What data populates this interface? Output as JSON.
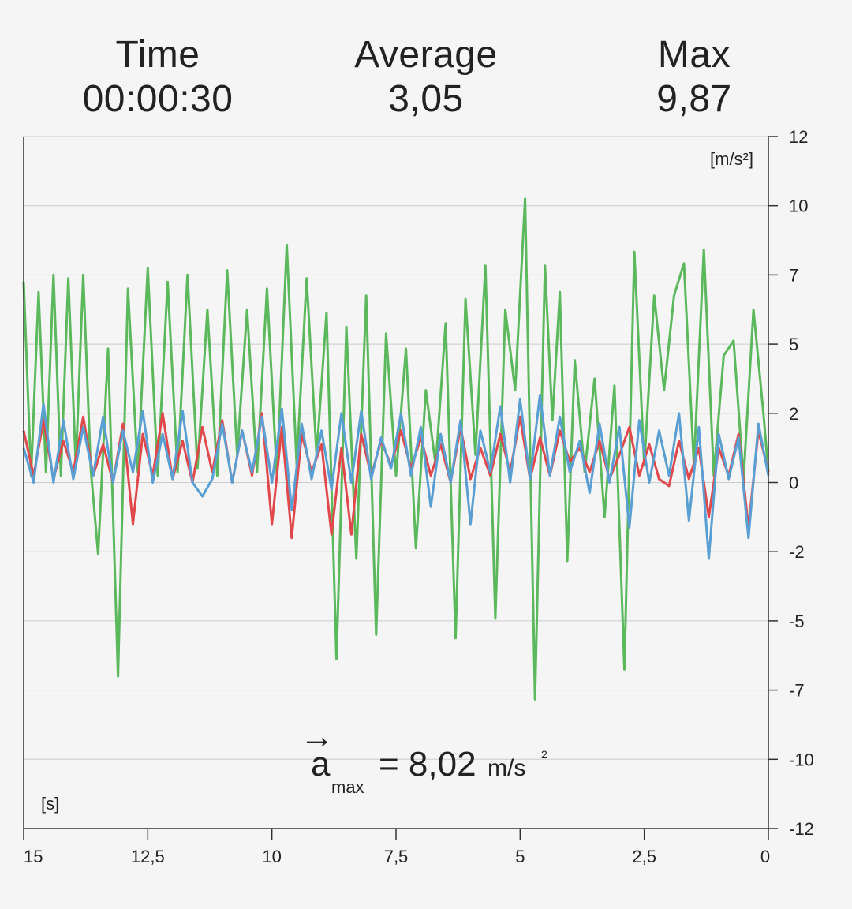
{
  "stats": {
    "time": {
      "label": "Time",
      "value": "00:00:30"
    },
    "average": {
      "label": "Average",
      "value": "3,05"
    },
    "max": {
      "label": "Max",
      "value": "9,87"
    }
  },
  "overlay": {
    "arrow": "→",
    "symbol": "a",
    "subscript": "max",
    "equals_value": "= 8,02",
    "unit": "m/s",
    "unit_sup": "2"
  },
  "chart_data": {
    "type": "line",
    "y_unit_label": "[m/s²]",
    "x_unit_label": "[s]",
    "xlim": [
      15,
      0
    ],
    "ylim": [
      -12,
      12
    ],
    "grid": true,
    "x_ticks": [
      15,
      12.5,
      10,
      7.5,
      5,
      2.5,
      0
    ],
    "x_tick_labels": [
      "15",
      "12,5",
      "10",
      "7,5",
      "5",
      "2,5",
      "0"
    ],
    "y_ticks": [
      12,
      10,
      7,
      5,
      2,
      0,
      -2,
      -5,
      -7,
      -10,
      -12
    ],
    "y_tick_labels": [
      "12",
      "10",
      "7",
      "5",
      "2",
      "0",
      "-2",
      "-5",
      "-7",
      "-10",
      "-12"
    ],
    "colors": {
      "red": "#e0484b",
      "green": "#5cb85c",
      "blue": "#5a9fd4",
      "grid": "#cccccc",
      "axis": "#333333"
    },
    "series": [
      {
        "color": "green",
        "x": [
          15,
          14.85,
          14.7,
          14.55,
          14.4,
          14.25,
          14.1,
          13.95,
          13.8,
          13.65,
          13.5,
          13.3,
          13.1,
          12.9,
          12.7,
          12.5,
          12.3,
          12.1,
          11.9,
          11.7,
          11.5,
          11.3,
          11.1,
          10.9,
          10.7,
          10.5,
          10.3,
          10.1,
          9.9,
          9.7,
          9.5,
          9.3,
          9.1,
          8.9,
          8.7,
          8.5,
          8.3,
          8.1,
          7.9,
          7.7,
          7.5,
          7.3,
          7.1,
          6.9,
          6.7,
          6.5,
          6.3,
          6.1,
          5.9,
          5.7,
          5.5,
          5.3,
          5.1,
          4.9,
          4.7,
          4.5,
          4.35,
          4.2,
          4.05,
          3.9,
          3.7,
          3.5,
          3.3,
          3.1,
          2.9,
          2.7,
          2.5,
          2.3,
          2.1,
          1.9,
          1.7,
          1.5,
          1.3,
          1.1,
          0.9,
          0.7,
          0.5,
          0.3,
          0.1,
          0
        ],
        "y": [
          6.8,
          0.2,
          6.5,
          0.3,
          7.0,
          0.2,
          6.9,
          0.5,
          7.0,
          0.4,
          -2.1,
          4.8,
          -6.6,
          6.6,
          0.3,
          7.3,
          0.2,
          6.8,
          0.3,
          7.0,
          0.4,
          6.0,
          0.2,
          7.2,
          0.8,
          6.0,
          0.3,
          6.6,
          0.2,
          8.3,
          0.5,
          6.9,
          0.8,
          5.9,
          -6.1,
          5.5,
          -2.3,
          6.4,
          -5.4,
          5.3,
          0.2,
          4.8,
          -1.9,
          3.0,
          0.5,
          5.6,
          -5.5,
          6.3,
          0.8,
          7.4,
          -4.9,
          6.0,
          3.0,
          10.2,
          -7.4,
          7.4,
          1.8,
          6.5,
          -2.4,
          4.3,
          0.3,
          3.5,
          -1.0,
          3.2,
          -6.4,
          8.0,
          0.5,
          6.4,
          3.0,
          6.4,
          7.5,
          0.5,
          8.1,
          0.2,
          4.5,
          5.1,
          0.1,
          6.0,
          2.0,
          0.3
        ]
      },
      {
        "color": "red",
        "x": [
          15,
          14.8,
          14.6,
          14.4,
          14.2,
          14.0,
          13.8,
          13.6,
          13.4,
          13.2,
          13.0,
          12.8,
          12.6,
          12.4,
          12.2,
          12.0,
          11.8,
          11.6,
          11.4,
          11.2,
          11.0,
          10.8,
          10.6,
          10.4,
          10.2,
          10.0,
          9.8,
          9.6,
          9.4,
          9.2,
          9.0,
          8.8,
          8.6,
          8.4,
          8.2,
          8.0,
          7.8,
          7.6,
          7.4,
          7.2,
          7.0,
          6.8,
          6.6,
          6.4,
          6.2,
          6.0,
          5.8,
          5.6,
          5.4,
          5.2,
          5.0,
          4.8,
          4.6,
          4.4,
          4.2,
          4.0,
          3.8,
          3.6,
          3.4,
          3.2,
          3.0,
          2.8,
          2.6,
          2.4,
          2.2,
          2.0,
          1.8,
          1.6,
          1.4,
          1.2,
          1.0,
          0.8,
          0.6,
          0.4,
          0.2,
          0
        ],
        "y": [
          1.5,
          0.2,
          1.8,
          0.1,
          1.2,
          0.3,
          1.9,
          0.2,
          1.1,
          0.0,
          1.7,
          -1.2,
          1.4,
          0.2,
          2.0,
          0.1,
          1.2,
          0.0,
          1.6,
          0.3,
          1.8,
          0.0,
          1.5,
          0.2,
          2.0,
          -1.2,
          1.6,
          -1.6,
          1.4,
          0.3,
          1.1,
          -1.5,
          1.0,
          -1.5,
          1.4,
          0.2,
          1.2,
          0.5,
          1.5,
          0.4,
          1.3,
          0.2,
          1.1,
          0.0,
          1.6,
          0.1,
          1.0,
          0.2,
          1.4,
          0.3,
          1.9,
          0.1,
          1.3,
          0.2,
          1.5,
          0.6,
          1.0,
          0.3,
          1.2,
          0.1,
          0.8,
          1.6,
          0.2,
          1.1,
          0.1,
          -0.1,
          1.2,
          0.1,
          1.0,
          -1.0,
          1.0,
          0.2,
          1.4,
          -1.3,
          1.5,
          0.3
        ]
      },
      {
        "color": "blue",
        "x": [
          15,
          14.8,
          14.6,
          14.4,
          14.2,
          14.0,
          13.8,
          13.6,
          13.4,
          13.2,
          13.0,
          12.8,
          12.6,
          12.4,
          12.2,
          12.0,
          11.8,
          11.6,
          11.4,
          11.2,
          11.0,
          10.8,
          10.6,
          10.4,
          10.2,
          10.0,
          9.8,
          9.6,
          9.4,
          9.2,
          9.0,
          8.8,
          8.6,
          8.4,
          8.2,
          8.0,
          7.8,
          7.6,
          7.4,
          7.2,
          7.0,
          6.8,
          6.6,
          6.4,
          6.2,
          6.0,
          5.8,
          5.6,
          5.4,
          5.2,
          5.0,
          4.8,
          4.6,
          4.4,
          4.2,
          4.0,
          3.8,
          3.6,
          3.4,
          3.2,
          3.0,
          2.8,
          2.6,
          2.4,
          2.2,
          2.0,
          1.8,
          1.6,
          1.4,
          1.2,
          1.0,
          0.8,
          0.6,
          0.4,
          0.2,
          0
        ],
        "y": [
          1.0,
          0.0,
          2.4,
          0.0,
          1.8,
          0.1,
          1.6,
          0.2,
          1.9,
          0.0,
          1.5,
          0.3,
          2.1,
          0.0,
          1.4,
          0.1,
          2.1,
          0.0,
          -0.4,
          0.1,
          1.7,
          0.0,
          1.5,
          0.3,
          1.9,
          0.0,
          2.2,
          -0.8,
          1.7,
          0.1,
          1.5,
          -0.2,
          2.0,
          0.0,
          2.1,
          0.1,
          1.3,
          0.4,
          2.0,
          0.2,
          1.6,
          -0.7,
          1.4,
          0.0,
          1.8,
          -1.2,
          1.5,
          0.3,
          2.3,
          0.0,
          2.6,
          0.1,
          2.8,
          0.2,
          1.9,
          0.3,
          1.2,
          -0.3,
          1.7,
          0.0,
          1.6,
          -1.3,
          1.8,
          0.0,
          1.5,
          0.2,
          2.0,
          -1.1,
          1.6,
          -2.3,
          1.4,
          0.1,
          1.3,
          -1.6,
          1.7,
          0.2
        ]
      }
    ]
  }
}
